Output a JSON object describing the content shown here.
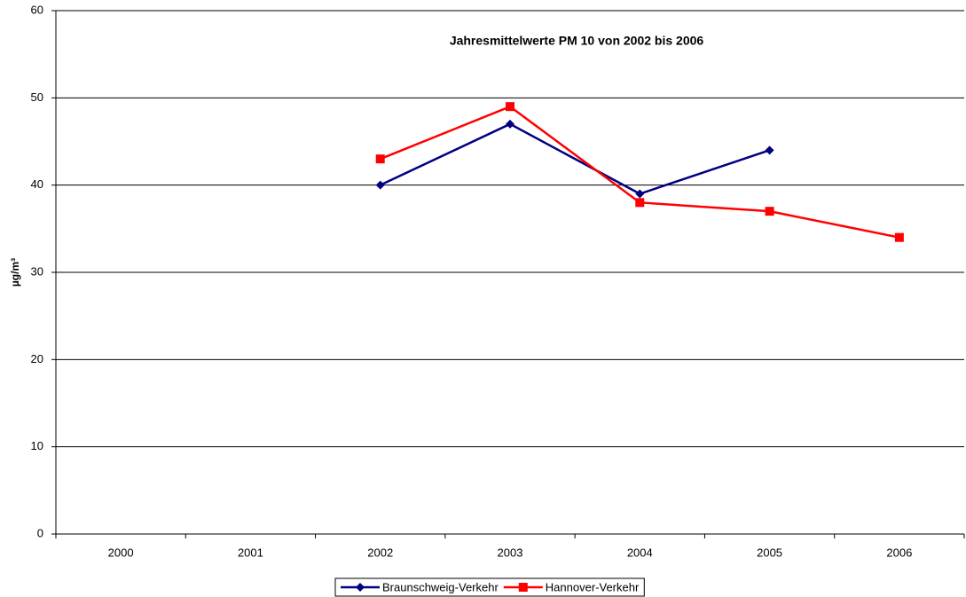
{
  "chart_data": {
    "type": "line",
    "title": "Jahresmittelwerte PM 10 von 2002 bis 2006",
    "y_label": "µg/m³",
    "categories": [
      "2000",
      "2001",
      "2002",
      "2003",
      "2004",
      "2005",
      "2006"
    ],
    "series": [
      {
        "name": "Braunschweig-Verkehr",
        "color": "#000080",
        "marker": "diamond",
        "values": [
          null,
          null,
          40,
          47,
          39,
          44,
          null
        ]
      },
      {
        "name": "Hannover-Verkehr",
        "color": "#ff0000",
        "marker": "square",
        "values": [
          null,
          null,
          43,
          49,
          38,
          37,
          34
        ]
      }
    ],
    "ylim": [
      0,
      60
    ],
    "yticks": [
      0,
      10,
      20,
      30,
      40,
      50,
      60
    ],
    "grid": true,
    "legend": "bottom"
  }
}
